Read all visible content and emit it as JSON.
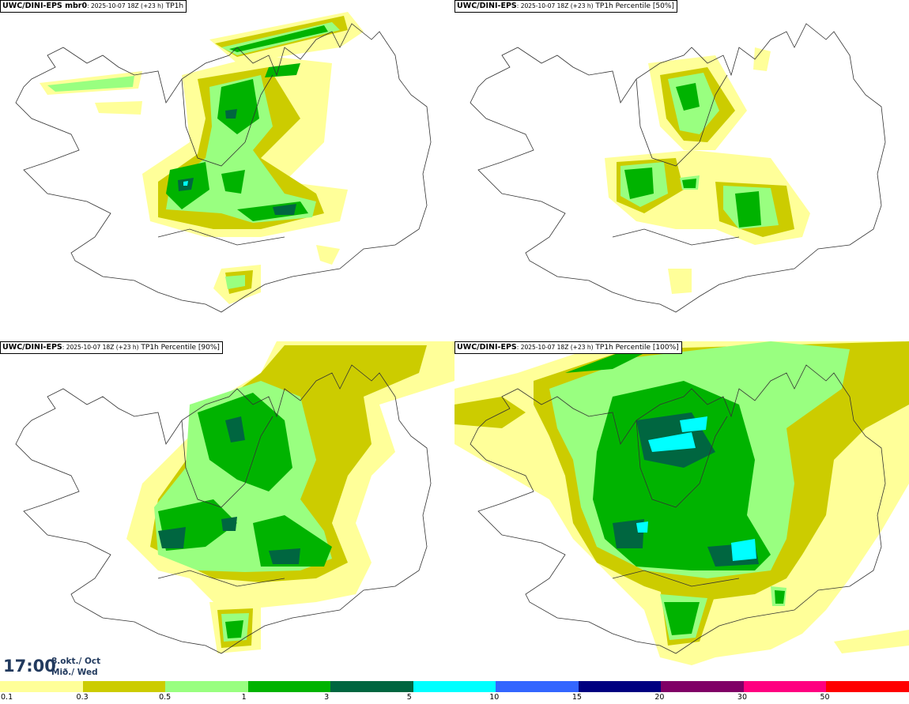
{
  "panels": [
    {
      "model": "UWC/DINI-EPS mbr0",
      "run": ": 2025-10-07 18Z (+23 h)",
      "field": " TP1h"
    },
    {
      "model": "UWC/DINI-EPS",
      "run": ": 2025-10-07 18Z (+23 h)",
      "field": " TP1h Percentile [50%]"
    },
    {
      "model": "UWC/DINI-EPS",
      "run": ": 2025-10-07 18Z (+23 h)",
      "field": " TP1h Percentile [90%]"
    },
    {
      "model": "UWC/DINI-EPS",
      "run": ": 2025-10-07 18Z (+23 h)",
      "field": " TP1h Percentile [100%]"
    }
  ],
  "valid_time": {
    "time": "17:00",
    "date_line1": "8.okt./ Oct",
    "date_line2": "Mið./ Wed"
  },
  "colorbar": {
    "labels": [
      "0.1",
      "0.3",
      "0.5",
      "1",
      "3",
      "5",
      "10",
      "15",
      "20",
      "30",
      "50"
    ],
    "colors": [
      "#ffff99",
      "#cccc00",
      "#99ff80",
      "#00b300",
      "#006640",
      "#00ffff",
      "#3366ff",
      "#000080",
      "#800066",
      "#ff0080",
      "#ff0000"
    ]
  }
}
